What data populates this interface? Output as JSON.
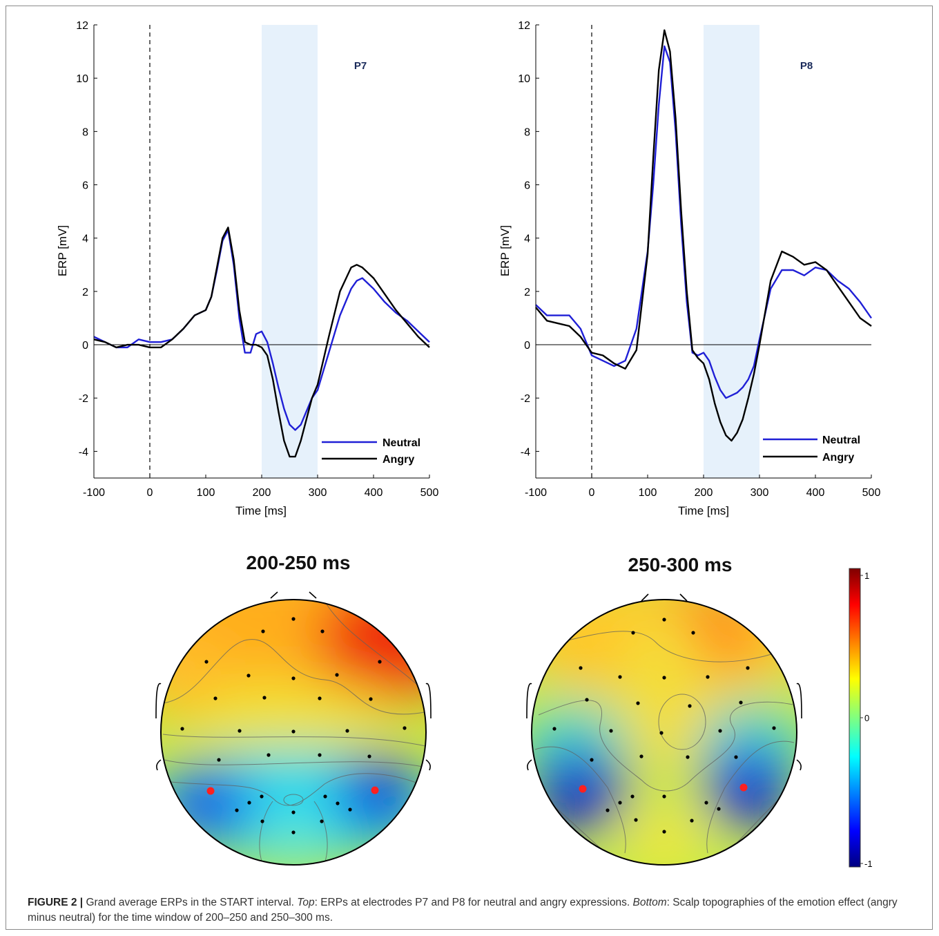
{
  "caption": {
    "label": "FIGURE 2 |",
    "seg1": " Grand average ERPs in the START interval. ",
    "top": "Top",
    "seg2": ": ERPs at electrodes P7 and P8 for neutral and angry expressions. ",
    "bottom": "Bottom",
    "seg3": ": Scalp topographies of the emotion effect (angry minus neutral) for the time window of 200–250 and 250–300 ms."
  },
  "colors": {
    "neutral": "#1f1fd6",
    "angry": "#000000",
    "window": "#e6f1fb"
  },
  "chart_data": [
    {
      "type": "line",
      "electrode": "P7",
      "xlabel": "Time [ms]",
      "ylabel": "ERP [mV]",
      "xlim": [
        -100,
        500
      ],
      "ylim": [
        -5,
        12
      ],
      "xticks": [
        -100,
        0,
        100,
        200,
        300,
        400,
        500
      ],
      "yticks": [
        -4,
        -2,
        0,
        2,
        4,
        6,
        8,
        10,
        12
      ],
      "highlight_window": [
        200,
        300
      ],
      "onset_line": 0,
      "legend": {
        "placement": "bottom-right",
        "entries": [
          "Neutral",
          "Angry"
        ]
      },
      "series": [
        {
          "name": "Neutral",
          "x": [
            -100,
            -80,
            -60,
            -40,
            -20,
            0,
            20,
            40,
            60,
            80,
            100,
            110,
            120,
            130,
            140,
            150,
            160,
            170,
            180,
            190,
            200,
            210,
            220,
            230,
            240,
            250,
            260,
            270,
            280,
            290,
            300,
            320,
            340,
            360,
            370,
            380,
            400,
            420,
            440,
            460,
            480,
            500
          ],
          "y": [
            0.3,
            0.1,
            -0.1,
            -0.1,
            0.2,
            0.1,
            0.1,
            0.2,
            0.6,
            1.1,
            1.3,
            1.8,
            2.8,
            3.9,
            4.3,
            3.0,
            1.0,
            -0.3,
            -0.3,
            0.4,
            0.5,
            0.1,
            -0.7,
            -1.6,
            -2.4,
            -3.0,
            -3.2,
            -3.0,
            -2.5,
            -2.0,
            -1.7,
            -0.3,
            1.1,
            2.1,
            2.4,
            2.5,
            2.1,
            1.6,
            1.2,
            0.9,
            0.5,
            0.1
          ]
        },
        {
          "name": "Angry",
          "x": [
            -100,
            -80,
            -60,
            -40,
            -20,
            0,
            20,
            40,
            60,
            80,
            100,
            110,
            120,
            130,
            140,
            150,
            160,
            170,
            180,
            190,
            200,
            210,
            220,
            230,
            240,
            250,
            260,
            270,
            280,
            290,
            300,
            320,
            340,
            360,
            370,
            380,
            400,
            420,
            440,
            460,
            480,
            500
          ],
          "y": [
            0.2,
            0.1,
            -0.1,
            0.0,
            0.0,
            -0.1,
            -0.1,
            0.2,
            0.6,
            1.1,
            1.3,
            1.8,
            2.9,
            4.0,
            4.4,
            3.2,
            1.3,
            0.1,
            0.0,
            0.0,
            -0.1,
            -0.4,
            -1.3,
            -2.5,
            -3.6,
            -4.2,
            -4.2,
            -3.6,
            -2.8,
            -2.0,
            -1.5,
            0.3,
            2.0,
            2.9,
            3.0,
            2.9,
            2.5,
            1.9,
            1.3,
            0.8,
            0.3,
            -0.1
          ]
        }
      ]
    },
    {
      "type": "line",
      "electrode": "P8",
      "xlabel": "Time [ms]",
      "ylabel": "ERP [mV]",
      "xlim": [
        -100,
        500
      ],
      "ylim": [
        -5,
        12
      ],
      "xticks": [
        -100,
        0,
        100,
        200,
        300,
        400,
        500
      ],
      "yticks": [
        -4,
        -2,
        0,
        2,
        4,
        6,
        8,
        10,
        12
      ],
      "highlight_window": [
        200,
        300
      ],
      "onset_line": 0,
      "legend": {
        "placement": "bottom-right",
        "entries": [
          "Neutral",
          "Angry"
        ]
      },
      "series": [
        {
          "name": "Neutral",
          "x": [
            -100,
            -80,
            -60,
            -40,
            -20,
            0,
            20,
            40,
            60,
            80,
            100,
            110,
            120,
            130,
            140,
            150,
            160,
            170,
            180,
            190,
            200,
            210,
            220,
            230,
            240,
            250,
            260,
            270,
            280,
            290,
            300,
            320,
            340,
            360,
            380,
            400,
            420,
            440,
            460,
            480,
            500
          ],
          "y": [
            1.5,
            1.1,
            1.1,
            1.1,
            0.6,
            -0.4,
            -0.6,
            -0.8,
            -0.6,
            0.6,
            3.5,
            6.0,
            9.0,
            11.2,
            10.6,
            8.0,
            4.5,
            1.6,
            -0.3,
            -0.4,
            -0.3,
            -0.6,
            -1.2,
            -1.7,
            -2.0,
            -1.9,
            -1.8,
            -1.6,
            -1.3,
            -0.8,
            0.2,
            2.1,
            2.8,
            2.8,
            2.6,
            2.9,
            2.8,
            2.4,
            2.1,
            1.6,
            1.0
          ]
        },
        {
          "name": "Angry",
          "x": [
            -100,
            -80,
            -60,
            -40,
            -20,
            0,
            20,
            40,
            60,
            80,
            100,
            110,
            120,
            130,
            140,
            150,
            160,
            170,
            180,
            190,
            200,
            210,
            220,
            230,
            240,
            250,
            260,
            270,
            280,
            290,
            300,
            320,
            340,
            360,
            380,
            400,
            420,
            440,
            460,
            480,
            500
          ],
          "y": [
            1.4,
            0.9,
            0.8,
            0.7,
            0.3,
            -0.3,
            -0.4,
            -0.7,
            -0.9,
            -0.2,
            3.4,
            7.0,
            10.3,
            11.8,
            11.0,
            8.5,
            5.0,
            2.0,
            -0.2,
            -0.5,
            -0.7,
            -1.3,
            -2.2,
            -2.9,
            -3.4,
            -3.6,
            -3.3,
            -2.8,
            -2.0,
            -1.1,
            0.0,
            2.4,
            3.5,
            3.3,
            3.0,
            3.1,
            2.8,
            2.2,
            1.6,
            1.0,
            0.7
          ]
        }
      ]
    },
    {
      "type": "heatmap",
      "title": "200-250 ms",
      "colorbar": {
        "min": -1,
        "max": 1,
        "ticks": [
          1,
          0,
          -1
        ]
      },
      "marked_electrodes": [
        "P7",
        "P8"
      ]
    },
    {
      "type": "heatmap",
      "title": "250-300 ms",
      "colorbar": {
        "min": -1,
        "max": 1,
        "ticks": [
          1,
          0,
          -1
        ]
      },
      "marked_electrodes": [
        "P7",
        "P8"
      ]
    }
  ]
}
